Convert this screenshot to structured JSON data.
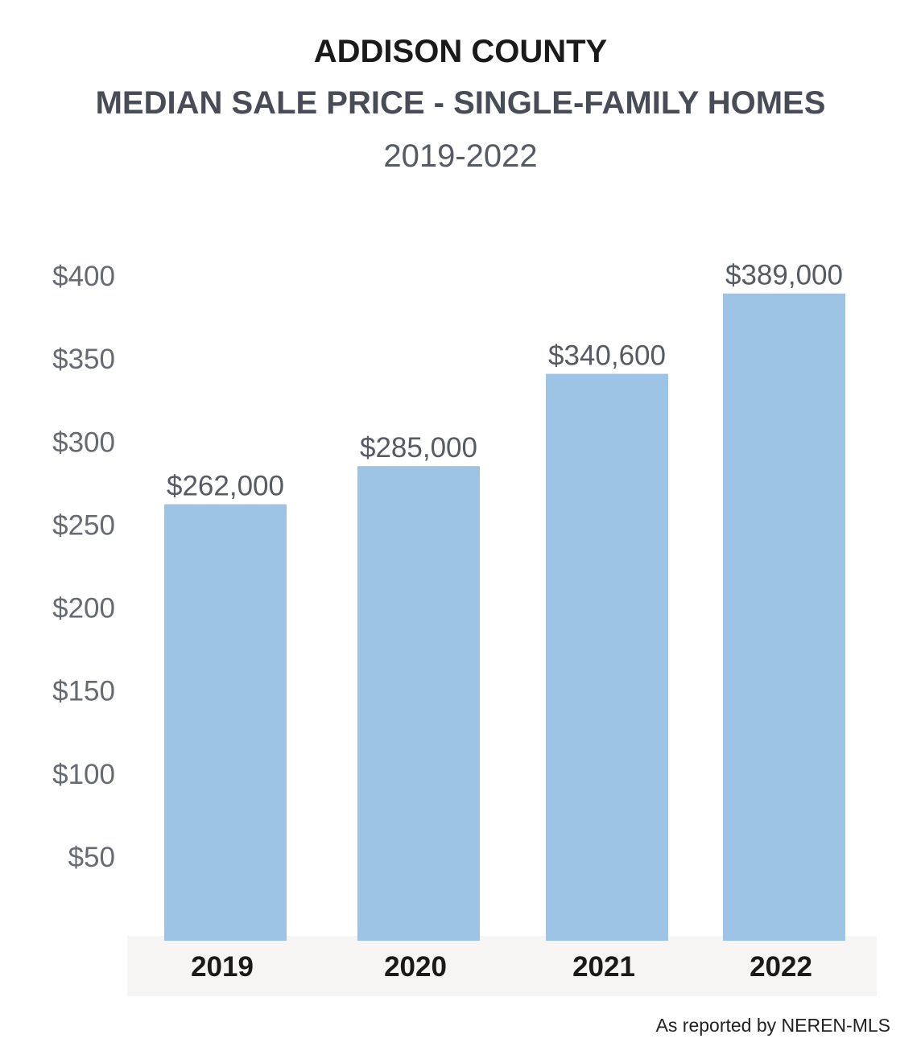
{
  "header": {
    "title": "ADDISON COUNTY",
    "subtitle": "MEDIAN SALE PRICE - SINGLE-FAMILY HOMES",
    "period": "2019-2022"
  },
  "footer": {
    "source": "As reported by NEREN-MLS"
  },
  "colors": {
    "bar": "#9dc3e5",
    "axis_band": "#f6f5f3"
  },
  "chart_data": {
    "type": "bar",
    "title": "ADDISON COUNTY",
    "subtitle": "MEDIAN SALE PRICE - SINGLE-FAMILY HOMES",
    "categories": [
      "2019",
      "2020",
      "2021",
      "2022"
    ],
    "values": [
      262000,
      285000,
      340600,
      389000
    ],
    "data_labels": [
      "$262,000",
      "$285,000",
      "$340,600",
      "$389,000"
    ],
    "y_ticks": [
      50,
      100,
      150,
      200,
      250,
      300,
      350,
      400
    ],
    "y_tick_labels": [
      "$50",
      "$100",
      "$150",
      "$200",
      "$250",
      "$300",
      "$350",
      "$400"
    ],
    "y_unit_divisor": 1000,
    "ylim": [
      0,
      400000
    ],
    "xlabel": "",
    "ylabel": "",
    "grid": false,
    "legend": "none"
  }
}
